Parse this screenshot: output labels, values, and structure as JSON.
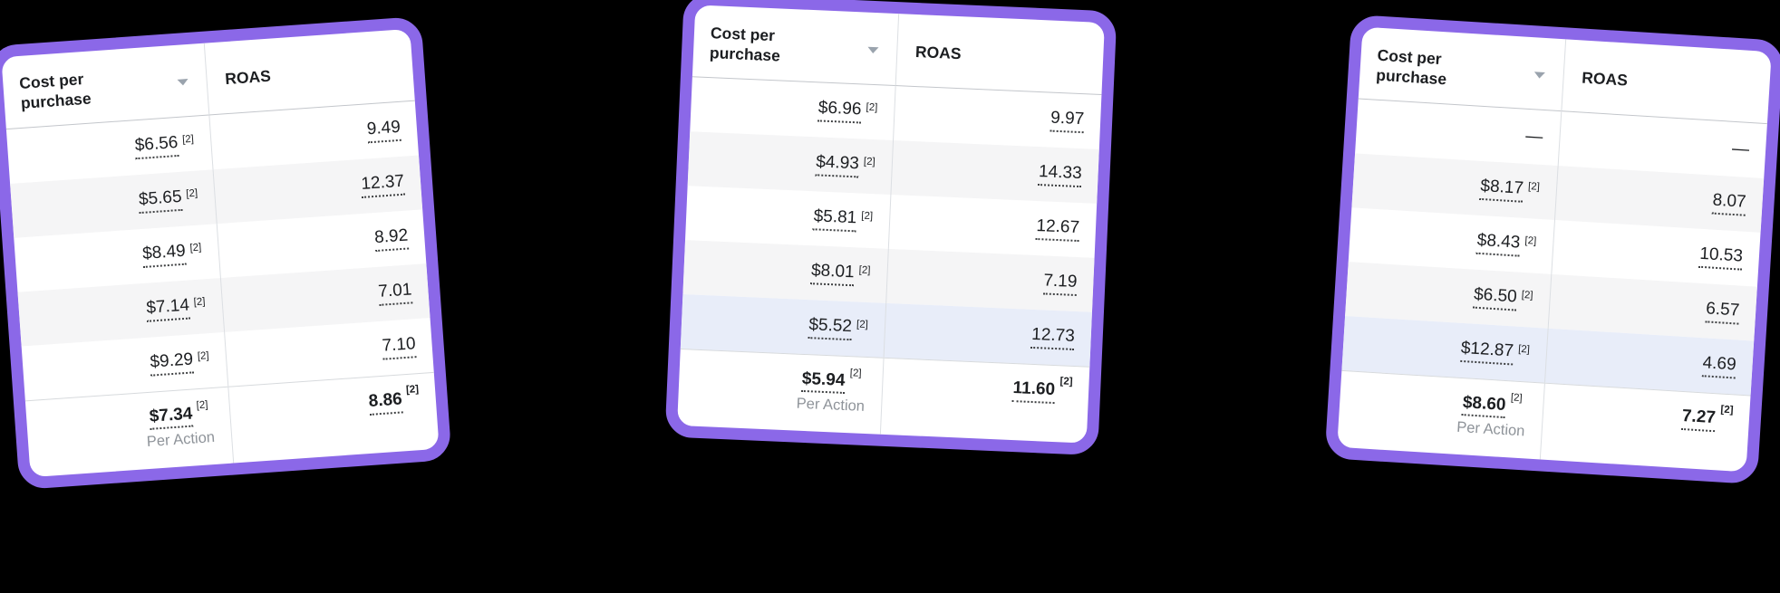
{
  "colors": {
    "accent_purple": "#8b68e8",
    "row_stripe": "#f5f5f6",
    "row_highlight": "#e8edf9",
    "background": "#000000"
  },
  "cards": [
    {
      "header": {
        "cost_label": "Cost per purchase",
        "roas_label": "ROAS",
        "sort_icon": "caret-down-icon"
      },
      "rows": [
        {
          "cost": "$6.56",
          "cost_ref": "[2]",
          "roas": "9.49"
        },
        {
          "cost": "$5.65",
          "cost_ref": "[2]",
          "roas": "12.37"
        },
        {
          "cost": "$8.49",
          "cost_ref": "[2]",
          "roas": "8.92"
        },
        {
          "cost": "$7.14",
          "cost_ref": "[2]",
          "roas": "7.01"
        },
        {
          "cost": "$9.29",
          "cost_ref": "[2]",
          "roas": "7.10"
        }
      ],
      "footer": {
        "cost": "$7.34",
        "cost_ref": "[2]",
        "sub_label": "Per Action",
        "roas": "8.86",
        "roas_ref": "[2]"
      }
    },
    {
      "header": {
        "cost_label": "Cost per purchase",
        "roas_label": "ROAS",
        "sort_icon": "caret-down-icon"
      },
      "rows": [
        {
          "cost": "$6.96",
          "cost_ref": "[2]",
          "roas": "9.97"
        },
        {
          "cost": "$4.93",
          "cost_ref": "[2]",
          "roas": "14.33"
        },
        {
          "cost": "$5.81",
          "cost_ref": "[2]",
          "roas": "12.67"
        },
        {
          "cost": "$8.01",
          "cost_ref": "[2]",
          "roas": "7.19"
        },
        {
          "cost": "$5.52",
          "cost_ref": "[2]",
          "roas": "12.73"
        }
      ],
      "footer": {
        "cost": "$5.94",
        "cost_ref": "[2]",
        "sub_label": "Per Action",
        "roas": "11.60",
        "roas_ref": "[2]"
      }
    },
    {
      "header": {
        "cost_label": "Cost per purchase",
        "roas_label": "ROAS",
        "sort_icon": "caret-down-icon"
      },
      "rows": [
        {
          "cost": "—",
          "cost_ref": "",
          "roas": "—"
        },
        {
          "cost": "$8.17",
          "cost_ref": "[2]",
          "roas": "8.07"
        },
        {
          "cost": "$8.43",
          "cost_ref": "[2]",
          "roas": "10.53"
        },
        {
          "cost": "$6.50",
          "cost_ref": "[2]",
          "roas": "6.57"
        },
        {
          "cost": "$12.87",
          "cost_ref": "[2]",
          "roas": "4.69"
        }
      ],
      "footer": {
        "cost": "$8.60",
        "cost_ref": "[2]",
        "sub_label": "Per Action",
        "roas": "7.27",
        "roas_ref": "[2]"
      }
    }
  ]
}
